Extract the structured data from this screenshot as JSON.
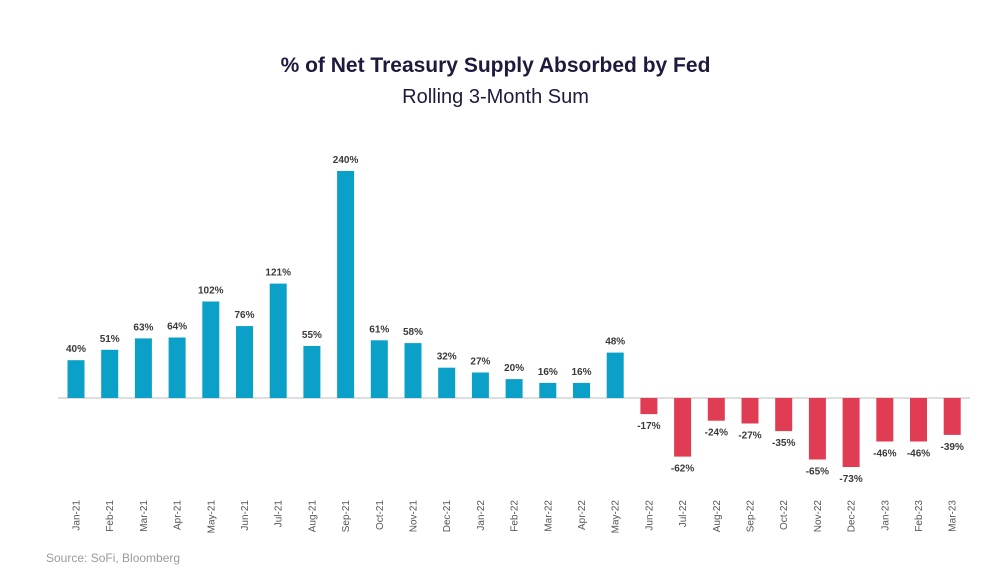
{
  "chart_data": {
    "type": "bar",
    "title": "% of Net Treasury Supply Absorbed by Fed",
    "subtitle": "Rolling 3-Month Sum",
    "categories": [
      "Jan-21",
      "Feb-21",
      "Mar-21",
      "Apr-21",
      "May-21",
      "Jun-21",
      "Jul-21",
      "Aug-21",
      "Sep-21",
      "Oct-21",
      "Nov-21",
      "Dec-21",
      "Jan-22",
      "Feb-22",
      "Mar-22",
      "Apr-22",
      "May-22",
      "Jun-22",
      "Jul-22",
      "Aug-22",
      "Sep-22",
      "Oct-22",
      "Nov-22",
      "Dec-22",
      "Jan-23",
      "Feb-23",
      "Mar-23"
    ],
    "values": [
      40,
      51,
      63,
      64,
      102,
      76,
      121,
      55,
      240,
      61,
      58,
      32,
      27,
      20,
      16,
      16,
      48,
      -17,
      -62,
      -24,
      -27,
      -35,
      -65,
      -73,
      -46,
      -46,
      -39
    ],
    "labels": [
      "40%",
      "51%",
      "63%",
      "64%",
      "102%",
      "76%",
      "121%",
      "55%",
      "240%",
      "61%",
      "58%",
      "32%",
      "27%",
      "20%",
      "16%",
      "16%",
      "48%",
      "-17%",
      "-62%",
      "-24%",
      "-27%",
      "-35%",
      "-65%",
      "-73%",
      "-46%",
      "-46%",
      "-39%"
    ],
    "xlabel": "",
    "ylabel": "",
    "ylim": [
      -80,
      240
    ],
    "grid": false,
    "legend": "none",
    "colors": {
      "positive": "#0aa0c8",
      "negative": "#e03c54"
    }
  },
  "source": "Source: SoFi, Bloomberg"
}
